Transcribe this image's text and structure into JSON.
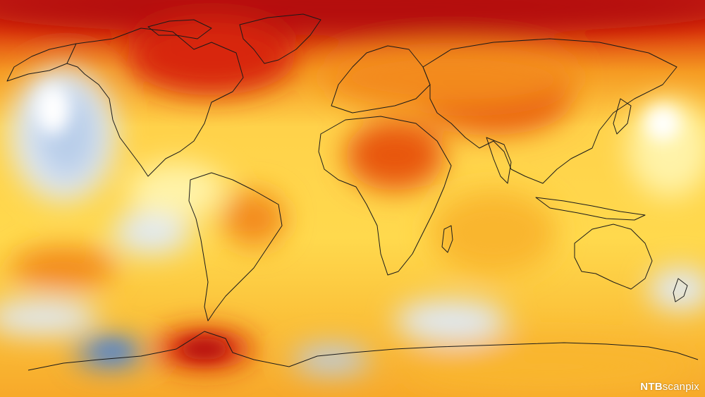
{
  "map": {
    "colors": {
      "deep_red": "#b40f0a",
      "red": "#d8260f",
      "dark_orange": "#e8560e",
      "orange": "#f38a1a",
      "yellow_orange": "#f9b62e",
      "yellow": "#ffd94d",
      "pale_yellow": "#fff3a8",
      "white": "#ffffff",
      "pale_blue": "#dfe9f6",
      "light_blue": "#b8cde9",
      "blue": "#5f88c2",
      "outline": "#1a1a1a"
    }
  },
  "credit": {
    "brand": "NTB",
    "sub": "scanpix"
  }
}
